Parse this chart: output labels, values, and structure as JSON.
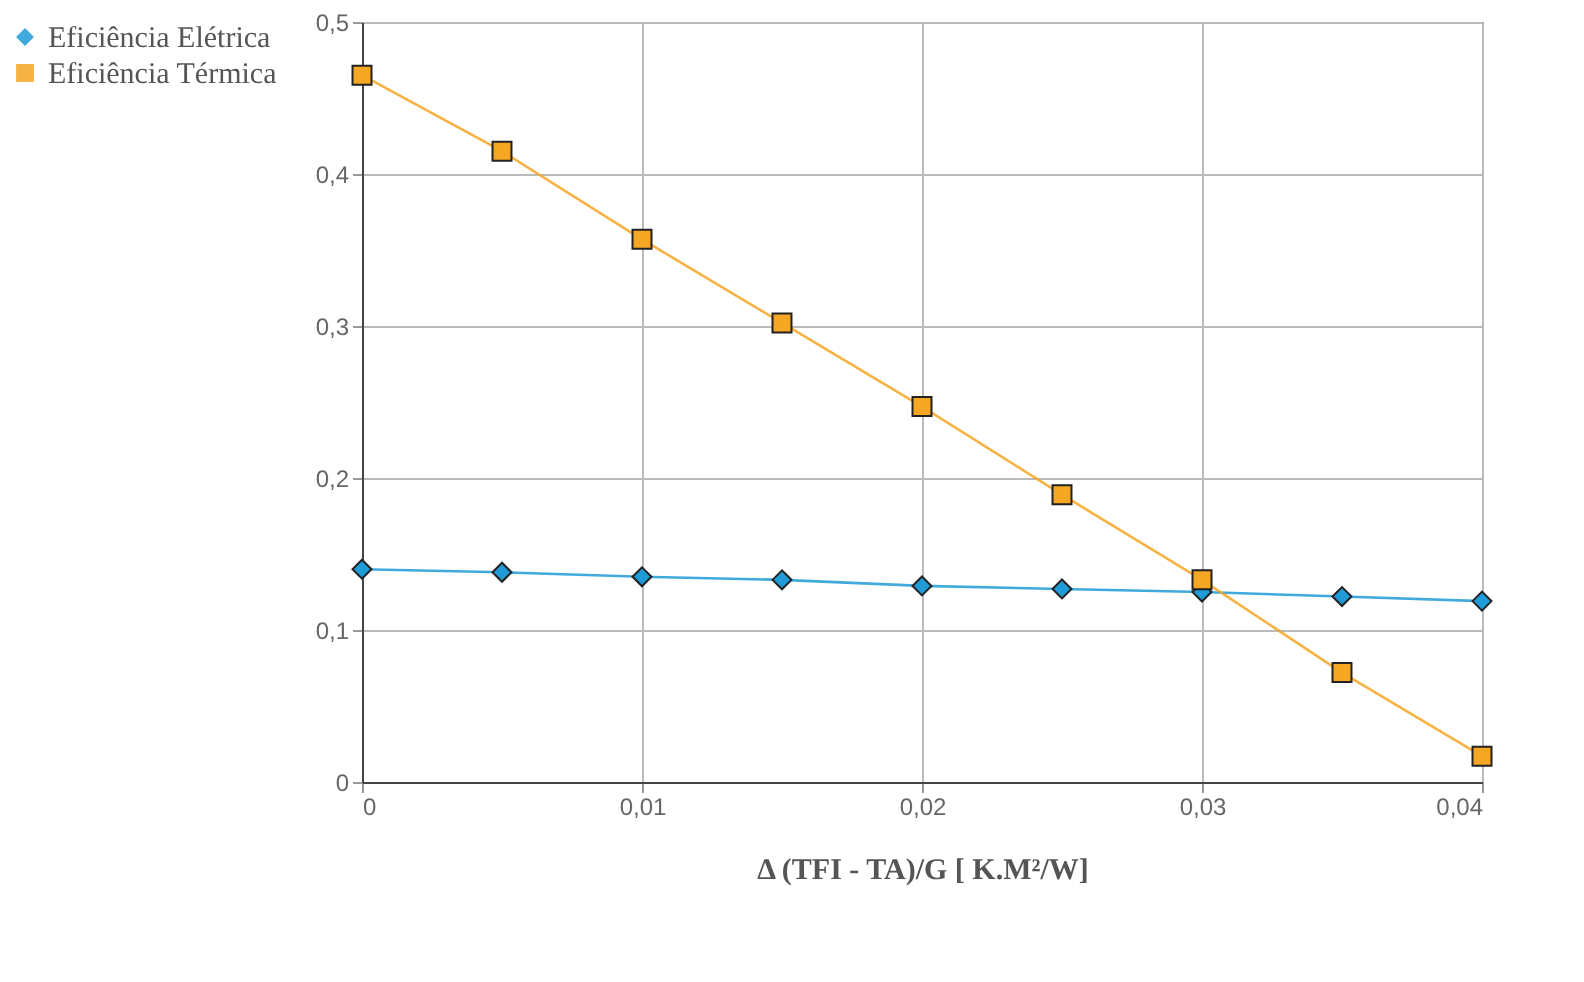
{
  "chart_data": {
    "type": "line",
    "xlabel": "Δ (TFI - TA)/G  [ K.M²/W]",
    "x": [
      0,
      0.005,
      0.01,
      0.015,
      0.02,
      0.025,
      0.03,
      0.035,
      0.04
    ],
    "series": [
      {
        "name": "Eficiência Elétrica",
        "color": "#1f9bd7",
        "marker": "diamond",
        "values": [
          0.14,
          0.138,
          0.135,
          0.133,
          0.129,
          0.127,
          0.125,
          0.122,
          0.119
        ]
      },
      {
        "name": "Eficiência Térmica",
        "color": "#f5a623",
        "marker": "square",
        "values": [
          0.465,
          0.415,
          0.357,
          0.302,
          0.247,
          0.189,
          0.133,
          0.072,
          0.017
        ]
      }
    ],
    "xlim": [
      0,
      0.04
    ],
    "xticks": [
      0,
      {
        "value": 0.01,
        "label": "0,01"
      },
      {
        "value": 0.02,
        "label": "0,02"
      },
      {
        "value": 0.03,
        "label": "0,03"
      },
      {
        "value": 0.04,
        "label": "0,04"
      }
    ],
    "ylim": [
      0,
      0.5
    ],
    "yticks": [
      0,
      {
        "value": 0.1,
        "label": "0,1"
      },
      {
        "value": 0.2,
        "label": "0,2"
      },
      {
        "value": 0.3,
        "label": "0,3"
      },
      {
        "value": 0.4,
        "label": "0,4"
      },
      {
        "value": 0.5,
        "label": "0,5"
      }
    ],
    "grid": true,
    "legend": "left",
    "line_style": "solid"
  }
}
